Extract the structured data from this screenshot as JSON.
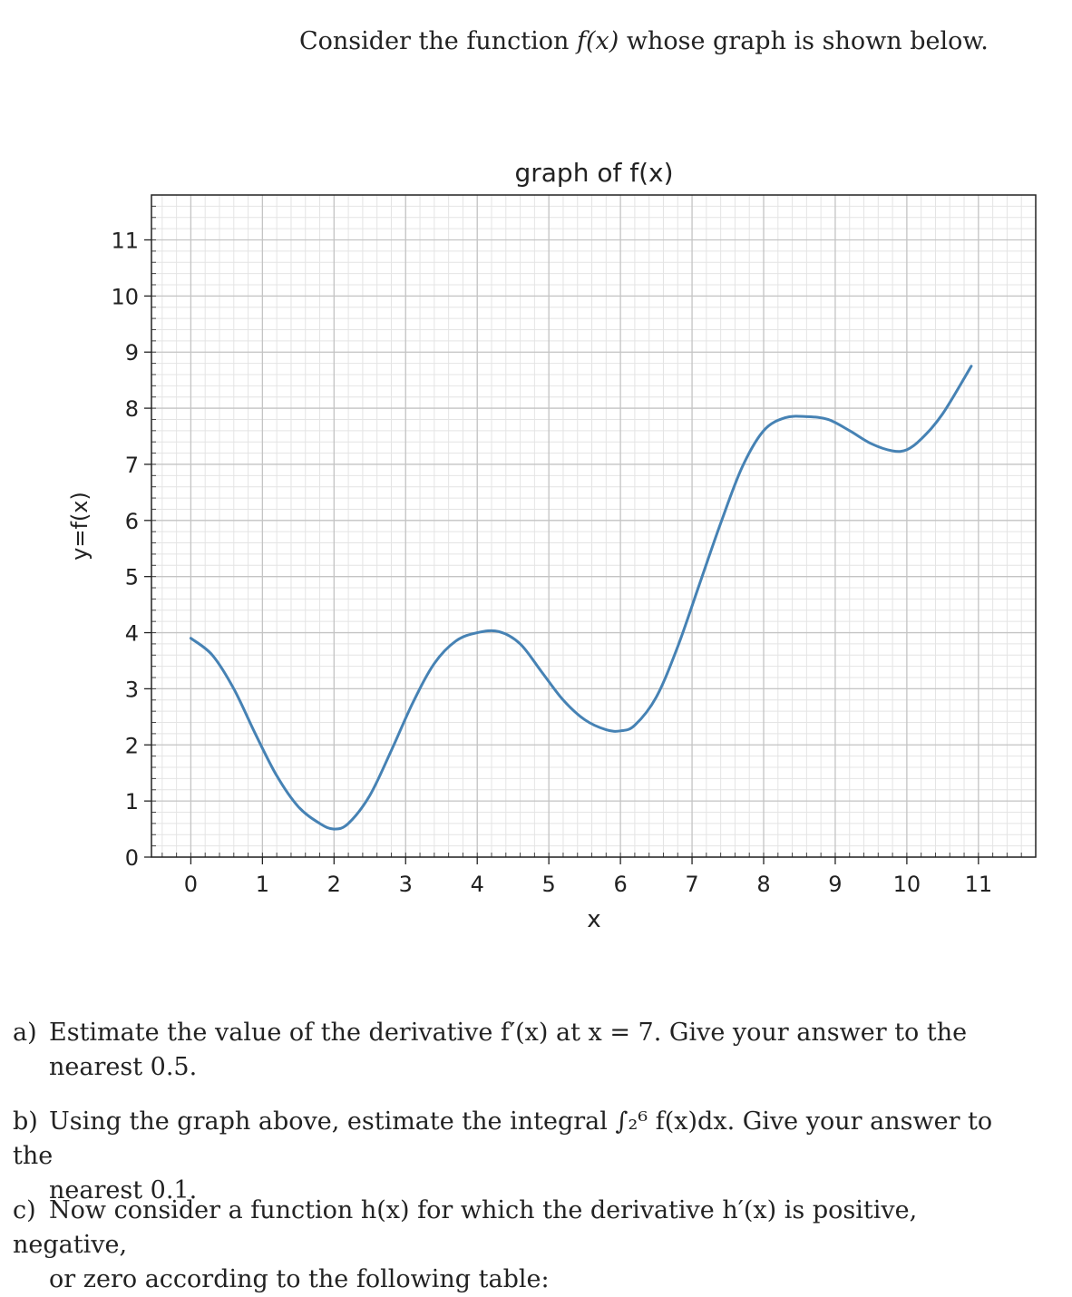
{
  "intro": {
    "before": "Consider the function ",
    "math": "f(x)",
    "after": " whose graph is shown below."
  },
  "chart_data": {
    "type": "line",
    "title": "graph of f(x)",
    "xlabel": "x",
    "ylabel": "y=f(x)",
    "xlim": [
      -0.55,
      11.8
    ],
    "ylim": [
      0,
      11.8
    ],
    "xticks": [
      0,
      1,
      2,
      3,
      4,
      5,
      6,
      7,
      8,
      9,
      10,
      11
    ],
    "yticks": [
      0,
      1,
      2,
      3,
      4,
      5,
      6,
      7,
      8,
      9,
      10,
      11
    ],
    "grid": true,
    "minor_grid": true,
    "color": "#4682b4",
    "series": [
      {
        "x": [
          0.0,
          0.3,
          0.6,
          0.9,
          1.2,
          1.5,
          1.8,
          2.0,
          2.2,
          2.5,
          2.8,
          3.1,
          3.4,
          3.7,
          4.0,
          4.3,
          4.6,
          4.9,
          5.2,
          5.5,
          5.8,
          6.0,
          6.2,
          6.5,
          6.8,
          7.1,
          7.4,
          7.7,
          8.0,
          8.3,
          8.6,
          8.9,
          9.2,
          9.5,
          9.8,
          10.0,
          10.2,
          10.5,
          10.9
        ],
        "y": [
          3.9,
          3.6,
          3.0,
          2.2,
          1.45,
          0.9,
          0.6,
          0.5,
          0.6,
          1.1,
          1.9,
          2.75,
          3.45,
          3.85,
          4.0,
          4.02,
          3.8,
          3.3,
          2.8,
          2.45,
          2.27,
          2.25,
          2.35,
          2.85,
          3.75,
          4.85,
          5.95,
          6.95,
          7.6,
          7.83,
          7.85,
          7.8,
          7.6,
          7.37,
          7.24,
          7.26,
          7.45,
          7.9,
          8.75
        ]
      }
    ]
  },
  "questions": {
    "a": {
      "label": "a)",
      "line1": "Estimate the value of the derivative f′(x) at x = 7. Give your answer to the",
      "line2": "nearest 0.5."
    },
    "b": {
      "label": "b)",
      "line1": "Using the graph above, estimate the integral ∫₂⁶ f(x)dx. Give your answer to the",
      "line2": "nearest 0.1."
    },
    "c": {
      "label": "c)",
      "line1": "Now consider a function h(x) for which the derivative h′(x) is positive, negative,",
      "line2": "or zero according to the following table:"
    }
  }
}
